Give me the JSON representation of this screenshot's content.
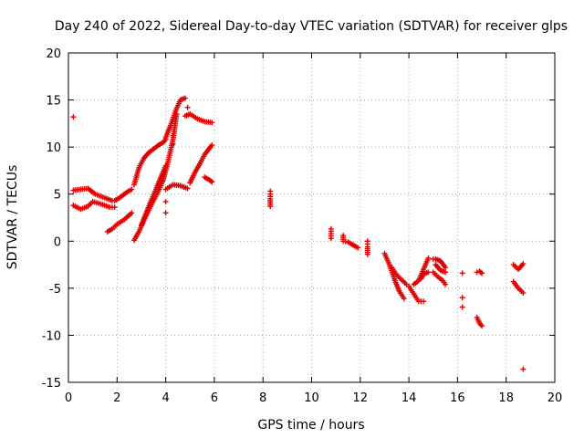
{
  "chart_data": {
    "type": "scatter",
    "title": "Day 240 of 2022, Sidereal Day-to-day VTEC variation (SDTVAR) for receiver glps",
    "xlabel": "GPS time / hours",
    "ylabel": "SDTVAR / TECUs",
    "xlim": [
      0,
      20
    ],
    "ylim": [
      -15,
      20
    ],
    "xticks": [
      0,
      2,
      4,
      6,
      8,
      10,
      12,
      14,
      16,
      18,
      20
    ],
    "yticks": [
      -15,
      -10,
      -5,
      0,
      5,
      10,
      15,
      20
    ],
    "grid": true,
    "marker": "+",
    "color": "#e00000",
    "segments": [
      {
        "x": [
          0.2,
          0.5,
          0.8,
          1.0,
          1.4,
          1.7,
          1.9
        ],
        "y": [
          3.8,
          3.4,
          3.7,
          4.2,
          3.9,
          3.6,
          3.6
        ]
      },
      {
        "x": [
          0.2,
          0.5,
          0.8,
          1.1,
          1.5,
          1.8
        ],
        "y": [
          5.4,
          5.5,
          5.6,
          5.0,
          4.6,
          4.3
        ]
      },
      {
        "x": [
          1.6,
          1.8,
          2.0,
          2.3,
          2.6
        ],
        "y": [
          1.0,
          1.3,
          1.8,
          2.3,
          3.0
        ]
      },
      {
        "x": [
          1.9,
          2.1,
          2.4,
          2.6
        ],
        "y": [
          4.3,
          4.6,
          5.2,
          5.5
        ]
      },
      {
        "x": [
          2.7,
          2.9,
          3.1,
          3.3,
          3.5,
          3.7,
          3.9,
          4.1,
          4.3,
          4.45
        ],
        "y": [
          0.1,
          1.0,
          2.2,
          3.3,
          4.3,
          5.3,
          6.5,
          8.5,
          10.8,
          13.5
        ]
      },
      {
        "x": [
          2.7,
          2.9,
          3.1,
          3.3,
          3.5,
          3.7,
          3.9,
          4.0
        ],
        "y": [
          6.0,
          7.8,
          8.8,
          9.4,
          9.8,
          10.2,
          10.5,
          10.8
        ]
      },
      {
        "x": [
          3.0,
          3.2,
          3.4,
          3.6,
          3.8,
          4.0
        ],
        "y": [
          1.7,
          3.0,
          4.3,
          5.5,
          6.8,
          8.0
        ]
      },
      {
        "x": [
          4.0,
          4.2,
          4.4,
          4.6,
          4.8
        ],
        "y": [
          11.0,
          12.3,
          13.8,
          15.0,
          15.2
        ]
      },
      {
        "x": [
          4.0,
          4.3,
          4.6,
          4.9
        ],
        "y": [
          5.5,
          6.0,
          5.9,
          5.6
        ]
      },
      {
        "x": [
          4.8,
          5.0,
          5.3,
          5.6,
          5.9
        ],
        "y": [
          13.3,
          13.5,
          13.0,
          12.7,
          12.6
        ]
      },
      {
        "x": [
          5.0,
          5.2,
          5.4,
          5.6,
          5.9
        ],
        "y": [
          6.2,
          7.3,
          8.2,
          9.2,
          10.2
        ]
      },
      {
        "x": [
          5.6,
          5.8,
          5.9
        ],
        "y": [
          6.8,
          6.5,
          6.3
        ]
      },
      {
        "x": [
          0.2
        ],
        "y": [
          13.2
        ]
      },
      {
        "x": [
          4.3
        ],
        "y": [
          11.2
        ]
      },
      {
        "x": [
          4.3
        ],
        "y": [
          10.3
        ]
      },
      {
        "x": [
          4.0
        ],
        "y": [
          3.0
        ]
      },
      {
        "x": [
          4.0
        ],
        "y": [
          4.2
        ]
      },
      {
        "x": [
          4.9
        ],
        "y": [
          14.2
        ]
      },
      {
        "x": [
          8.3,
          8.3,
          8.3,
          8.3
        ],
        "y": [
          5.3,
          5.0,
          4.5,
          3.7
        ]
      },
      {
        "x": [
          10.8,
          10.8,
          10.8
        ],
        "y": [
          1.3,
          0.8,
          0.3
        ]
      },
      {
        "x": [
          11.3,
          11.3,
          11.5,
          11.7,
          11.9
        ],
        "y": [
          0.6,
          0.0,
          -0.1,
          -0.4,
          -0.7
        ]
      },
      {
        "x": [
          12.3,
          12.3,
          12.3,
          12.3,
          12.3
        ],
        "y": [
          0.0,
          -0.3,
          -0.6,
          -1.0,
          -1.4
        ]
      },
      {
        "x": [
          13.0,
          13.2,
          13.4,
          13.6,
          13.8
        ],
        "y": [
          -1.3,
          -2.5,
          -4.0,
          -5.3,
          -6.1
        ]
      },
      {
        "x": [
          13.3,
          13.5,
          13.7,
          13.9
        ],
        "y": [
          -2.8,
          -3.6,
          -4.1,
          -4.6
        ]
      },
      {
        "x": [
          14.0,
          14.2,
          14.4,
          14.6
        ],
        "y": [
          -4.8,
          -5.6,
          -6.4,
          -6.4
        ]
      },
      {
        "x": [
          14.2,
          14.4,
          14.6,
          14.8
        ],
        "y": [
          -4.6,
          -4.2,
          -3.0,
          -1.8
        ]
      },
      {
        "x": [
          14.5,
          14.6,
          14.8
        ],
        "y": [
          -4.0,
          -3.5,
          -3.3
        ]
      },
      {
        "x": [
          15.0,
          15.2,
          15.4,
          15.5
        ],
        "y": [
          -3.3,
          -3.8,
          -4.2,
          -4.6
        ]
      },
      {
        "x": [
          15.0,
          15.1,
          15.3,
          15.5
        ],
        "y": [
          -1.9,
          -1.9,
          -2.1,
          -2.8
        ]
      },
      {
        "x": [
          15.1,
          15.3,
          15.5
        ],
        "y": [
          -2.5,
          -3.1,
          -3.3
        ]
      },
      {
        "x": [
          16.2
        ],
        "y": [
          -3.4
        ]
      },
      {
        "x": [
          16.2
        ],
        "y": [
          -6.0
        ]
      },
      {
        "x": [
          16.2
        ],
        "y": [
          -7.0
        ]
      },
      {
        "x": [
          16.8,
          16.9,
          17.0
        ],
        "y": [
          -8.1,
          -8.7,
          -9.0
        ]
      },
      {
        "x": [
          16.8,
          16.9,
          17.0
        ],
        "y": [
          -3.3,
          -3.2,
          -3.4
        ]
      },
      {
        "x": [
          18.3,
          18.5,
          18.7
        ],
        "y": [
          -2.5,
          -3.0,
          -2.4
        ]
      },
      {
        "x": [
          18.3,
          18.5,
          18.7
        ],
        "y": [
          -4.3,
          -5.0,
          -5.5
        ]
      },
      {
        "x": [
          18.7
        ],
        "y": [
          -13.6
        ]
      }
    ]
  }
}
